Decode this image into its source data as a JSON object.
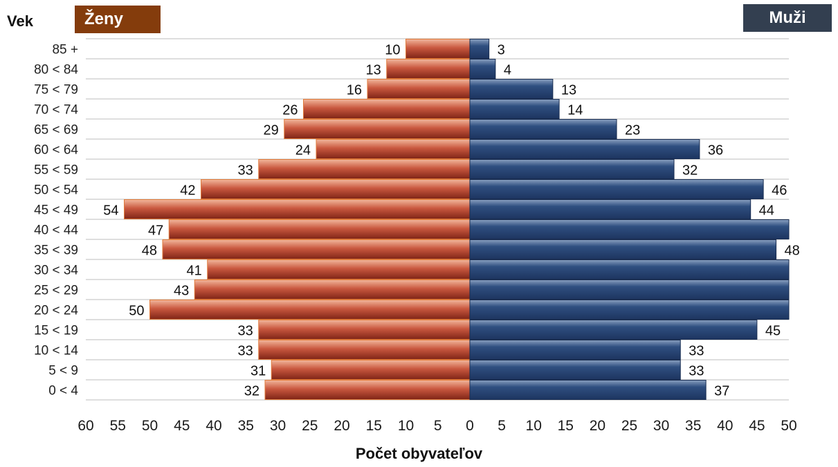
{
  "chart_data": {
    "type": "bar",
    "orientation": "horizontal",
    "subtype": "population-pyramid",
    "ylabel": "Vek",
    "xlabel": "Počet obyvateľov",
    "categories": [
      "85 +",
      "80 < 84",
      "75 < 79",
      "70 < 74",
      "65 < 69",
      "60 < 64",
      "55 < 59",
      "50 < 54",
      "45 < 49",
      "40 < 44",
      "35 < 39",
      "30 < 34",
      "25 < 29",
      "20 < 24",
      "15 < 19",
      "10 < 14",
      "5 < 9",
      "0 < 4"
    ],
    "series": [
      {
        "name": "Ženy",
        "side": "left",
        "color": "#b5483b",
        "values": [
          10,
          13,
          16,
          26,
          29,
          24,
          33,
          42,
          54,
          47,
          48,
          41,
          43,
          50,
          33,
          33,
          31,
          32
        ]
      },
      {
        "name": "Muži",
        "side": "right",
        "color": "#2a4a7b",
        "values": [
          3,
          4,
          13,
          14,
          23,
          36,
          32,
          46,
          44,
          50,
          48,
          50,
          50,
          50,
          45,
          33,
          33,
          37
        ],
        "labels": [
          "3",
          "4",
          "13",
          "14",
          "23",
          "36",
          "32",
          "46",
          "44",
          "",
          "48",
          "",
          "",
          "",
          "45",
          "33",
          "33",
          "37"
        ]
      }
    ],
    "xlim_left": [
      0,
      60
    ],
    "xlim_right": [
      0,
      50
    ],
    "xticks": [
      "60",
      "55",
      "50",
      "45",
      "40",
      "35",
      "30",
      "25",
      "20",
      "15",
      "10",
      "5",
      "0",
      "5",
      "10",
      "15",
      "20",
      "25",
      "30",
      "35",
      "40",
      "45",
      "50"
    ],
    "grid": true,
    "legend_placement": "top"
  },
  "legend": {
    "female": "Ženy",
    "male": "Muži"
  },
  "colors": {
    "female_legend": "#843c0c",
    "male_legend": "#333f50",
    "female_bar": "#b5483b",
    "male_bar": "#2a4a7b"
  }
}
